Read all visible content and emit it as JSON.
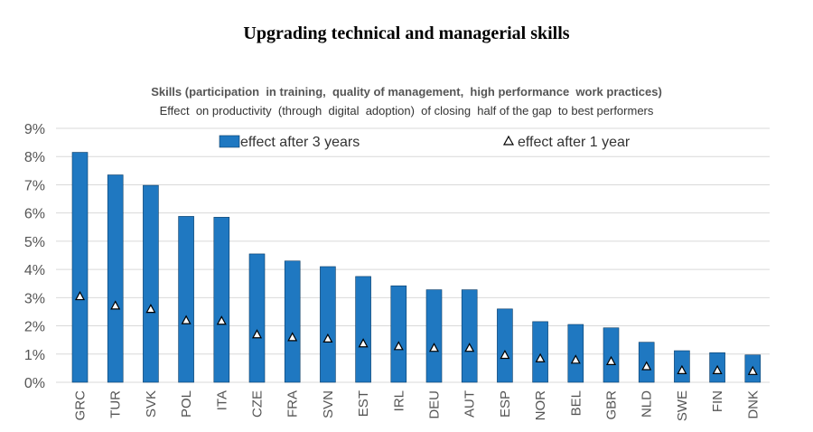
{
  "title": "Upgrading technical and managerial skills",
  "subtitle_line1": "Skills (participation  in training,  quality of management,  high performance  work practices)",
  "subtitle_line2": "Effect  on productivity  (through  digital  adoption)  of closing  half of the gap  to best performers",
  "chart_data": {
    "type": "bar",
    "categories": [
      "GRC",
      "TUR",
      "SVK",
      "POL",
      "ITA",
      "CZE",
      "FRA",
      "SVN",
      "EST",
      "IRL",
      "DEU",
      "AUT",
      "ESP",
      "NOR",
      "BEL",
      "GBR",
      "NLD",
      "SWE",
      "FIN",
      "DNK"
    ],
    "series": [
      {
        "name": "effect after 3 years",
        "type": "bar",
        "color": "#1f78c1",
        "values": [
          8.15,
          7.35,
          6.98,
          5.88,
          5.85,
          4.55,
          4.3,
          4.1,
          3.75,
          3.42,
          3.28,
          3.28,
          2.6,
          2.15,
          2.05,
          1.93,
          1.42,
          1.12,
          1.05,
          0.97
        ]
      },
      {
        "name": "effect after 1 year",
        "type": "marker",
        "marker": "triangle",
        "values": [
          3.05,
          2.72,
          2.6,
          2.2,
          2.18,
          1.7,
          1.6,
          1.55,
          1.38,
          1.28,
          1.22,
          1.22,
          0.97,
          0.85,
          0.8,
          0.75,
          0.57,
          0.43,
          0.43,
          0.4
        ]
      }
    ],
    "yticks": [
      "0%",
      "1%",
      "2%",
      "3%",
      "4%",
      "5%",
      "6%",
      "7%",
      "8%",
      "9%"
    ],
    "ylim": [
      0,
      9
    ],
    "grid": true,
    "legend": "top"
  }
}
